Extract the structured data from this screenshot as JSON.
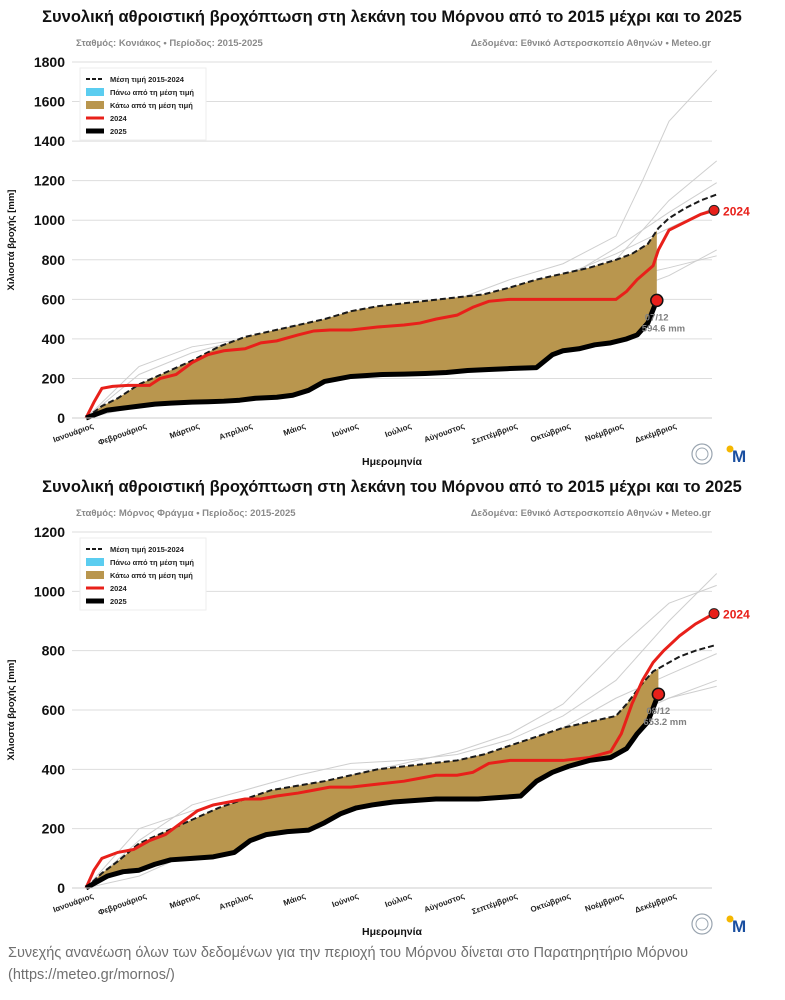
{
  "charts": [
    {
      "title": "Συνολική αθροιστική βροχόπτωση στη λεκάνη του Μόρνου από το 2015 μέχρι και το 2025",
      "station": "Σταθμός: Κονιάκος • Περίοδος: 2015-2025",
      "source": "Δεδομένα: Εθνικό Αστεροσκοπείο Αθηνών • Meteo.gr",
      "ylabel": "Χιλιοστά βροχής [mm]",
      "xlabel": "Ημερομηνία",
      "ylim": [
        0,
        1800
      ],
      "yticks": [
        0,
        200,
        400,
        600,
        800,
        1000,
        1200,
        1400,
        1600,
        1800
      ],
      "months": [
        "Ιανουάριος",
        "Φεβρουάριος",
        "Μάρτιος",
        "Απρίλιος",
        "Μάιος",
        "Ιούνιος",
        "Ιούλιος",
        "Αύγουστος",
        "Σεπτέμβριος",
        "Οκτώβριος",
        "Νοέμβριος",
        "Δεκέμβριος"
      ],
      "legend": [
        "Μέση τιμή 2015-2024",
        "Πάνω από τη μέση τιμή",
        "Κάτω από τη μέση τιμή",
        "2024",
        "2025"
      ],
      "label_2024": "2024",
      "point_date": "07/12",
      "point_value": "594.6 mm",
      "series": {
        "mean": {
          "x": [
            0,
            0.3,
            0.6,
            1,
            1.5,
            2,
            2.5,
            3,
            3.5,
            4,
            4.5,
            5,
            5.5,
            6,
            6.5,
            7,
            7.5,
            8,
            8.5,
            9,
            9.5,
            10,
            10.3,
            10.6,
            10.8,
            11,
            11.3,
            11.6,
            11.9
          ],
          "y": [
            0,
            60,
            100,
            170,
            230,
            290,
            360,
            410,
            440,
            470,
            500,
            540,
            565,
            580,
            595,
            610,
            625,
            660,
            700,
            730,
            760,
            800,
            830,
            880,
            960,
            1010,
            1060,
            1100,
            1130
          ]
        },
        "y2024": {
          "x": [
            0,
            0.15,
            0.3,
            0.5,
            0.8,
            1.2,
            1.4,
            1.7,
            2.0,
            2.3,
            2.6,
            3.0,
            3.3,
            3.6,
            4.0,
            4.3,
            4.6,
            5.0,
            5.5,
            6.0,
            6.3,
            6.6,
            7.0,
            7.3,
            7.6,
            8.0,
            8.5,
            9.0,
            9.5,
            10.0,
            10.2,
            10.4,
            10.7,
            10.8,
            11.0,
            11.3,
            11.6,
            11.85
          ],
          "y": [
            0,
            80,
            150,
            160,
            165,
            165,
            200,
            220,
            280,
            320,
            340,
            350,
            380,
            390,
            420,
            440,
            445,
            445,
            460,
            470,
            480,
            500,
            520,
            560,
            590,
            600,
            600,
            600,
            600,
            600,
            640,
            700,
            770,
            850,
            950,
            990,
            1030,
            1050
          ]
        },
        "y2025": {
          "x": [
            0,
            0.2,
            0.4,
            0.7,
            1.0,
            1.3,
            1.6,
            2.0,
            2.3,
            2.6,
            2.9,
            3.2,
            3.6,
            3.9,
            4.2,
            4.5,
            4.8,
            5.0,
            5.3,
            5.6,
            6.0,
            6.4,
            6.8,
            7.2,
            7.6,
            8.0,
            8.5,
            8.8,
            9.0,
            9.3,
            9.6,
            9.9,
            10.2,
            10.4,
            10.6,
            10.77
          ],
          "y": [
            0,
            20,
            40,
            50,
            60,
            70,
            75,
            80,
            82,
            85,
            90,
            100,
            105,
            115,
            140,
            185,
            200,
            210,
            215,
            220,
            222,
            225,
            230,
            240,
            245,
            250,
            255,
            320,
            340,
            350,
            370,
            380,
            400,
            420,
            480,
            594.6
          ]
        },
        "others": [
          {
            "x": [
              0,
              1,
              2,
              3,
              4,
              5,
              6,
              7,
              8,
              9,
              10,
              11,
              11.9
            ],
            "y": [
              0,
              110,
              200,
              260,
              320,
              400,
              440,
              470,
              530,
              620,
              800,
              1100,
              1300
            ]
          },
          {
            "x": [
              0,
              1,
              2,
              3,
              4,
              5,
              6,
              7,
              8,
              9,
              10,
              10.5,
              11,
              11.9
            ],
            "y": [
              0,
              220,
              330,
              400,
              470,
              520,
              560,
              600,
              700,
              780,
              920,
              1200,
              1500,
              1760
            ]
          },
          {
            "x": [
              0,
              1,
              2,
              3,
              4,
              5,
              6,
              7,
              8,
              9,
              10,
              11,
              11.9
            ],
            "y": [
              0,
              60,
              150,
              230,
              290,
              380,
              430,
              470,
              500,
              560,
              620,
              720,
              850
            ]
          },
          {
            "x": [
              0,
              1,
              2,
              3,
              4,
              5,
              6,
              7,
              8,
              9,
              10,
              11,
              11.9
            ],
            "y": [
              0,
              150,
              260,
              330,
              390,
              420,
              470,
              520,
              600,
              700,
              860,
              1040,
              1190
            ]
          },
          {
            "x": [
              0,
              1,
              2,
              3,
              4,
              5,
              6,
              7,
              8,
              9,
              10,
              11,
              11.9
            ],
            "y": [
              0,
              90,
              230,
              350,
              430,
              520,
              570,
              600,
              640,
              720,
              830,
              960,
              1070
            ]
          },
          {
            "x": [
              0,
              1,
              2,
              3,
              4,
              5,
              6,
              7,
              8,
              9,
              10,
              11,
              11.9
            ],
            "y": [
              0,
              260,
              360,
              400,
              440,
              460,
              490,
              520,
              560,
              620,
              700,
              760,
              820
            ]
          }
        ]
      }
    },
    {
      "title": "Συνολική αθροιστική βροχόπτωση στη λεκάνη του Μόρνου από το 2015 μέχρι και το 2025",
      "station": "Σταθμός: Μόρνος Φράγμα • Περίοδος: 2015-2025",
      "source": "Δεδομένα: Εθνικό Αστεροσκοπείο Αθηνών • Meteo.gr",
      "ylabel": "Χιλιοστά βροχής [mm]",
      "xlabel": "Ημερομηνία",
      "ylim": [
        0,
        1200
      ],
      "yticks": [
        0,
        200,
        400,
        600,
        800,
        1000,
        1200
      ],
      "months": [
        "Ιανουάριος",
        "Φεβρουάριος",
        "Μάρτιος",
        "Απρίλιος",
        "Μάιος",
        "Ιούνιος",
        "Ιούλιος",
        "Αύγουστος",
        "Σεπτέμβριος",
        "Οκτώβριος",
        "Νοέμβριος",
        "Δεκέμβριος"
      ],
      "legend": [
        "Μέση τιμή 2015-2024",
        "Πάνω από τη μέση τιμή",
        "Κάτω από τη μέση τιμή",
        "2024",
        "2025"
      ],
      "label_2024": "2024",
      "point_date": "08/12",
      "point_value": "653.2 mm",
      "series": {
        "mean": {
          "x": [
            0,
            0.3,
            0.6,
            1,
            1.5,
            2,
            2.5,
            3,
            3.5,
            4,
            4.5,
            5,
            5.5,
            6,
            6.5,
            7,
            7.5,
            8,
            8.5,
            9,
            9.5,
            10,
            10.2,
            10.5,
            10.7,
            10.9,
            11.2,
            11.5,
            11.9
          ],
          "y": [
            0,
            50,
            90,
            150,
            190,
            230,
            270,
            300,
            330,
            345,
            360,
            380,
            400,
            410,
            420,
            430,
            450,
            480,
            510,
            540,
            560,
            580,
            620,
            690,
            730,
            750,
            780,
            800,
            820
          ]
        },
        "y2024": {
          "x": [
            0,
            0.15,
            0.3,
            0.6,
            0.9,
            1.2,
            1.5,
            1.8,
            2.1,
            2.4,
            2.7,
            3.0,
            3.3,
            3.6,
            4.0,
            4.3,
            4.6,
            5.0,
            5.5,
            6.0,
            6.3,
            6.6,
            7.0,
            7.3,
            7.6,
            8.0,
            8.5,
            9.0,
            9.5,
            9.9,
            10.1,
            10.3,
            10.5,
            10.7,
            10.9,
            11.2,
            11.5,
            11.85
          ],
          "y": [
            0,
            60,
            100,
            120,
            130,
            160,
            180,
            220,
            260,
            280,
            290,
            300,
            300,
            310,
            320,
            330,
            340,
            340,
            350,
            360,
            370,
            380,
            380,
            390,
            420,
            430,
            430,
            430,
            440,
            460,
            520,
            620,
            700,
            760,
            800,
            850,
            890,
            925
          ]
        },
        "y2025": {
          "x": [
            0,
            0.2,
            0.4,
            0.7,
            1.0,
            1.3,
            1.6,
            2.0,
            2.4,
            2.8,
            3.1,
            3.4,
            3.8,
            4.2,
            4.5,
            4.8,
            5.1,
            5.4,
            5.8,
            6.2,
            6.6,
            7.0,
            7.4,
            7.8,
            8.2,
            8.5,
            8.8,
            9.1,
            9.5,
            9.9,
            10.2,
            10.4,
            10.6,
            10.8
          ],
          "y": [
            0,
            20,
            40,
            55,
            60,
            80,
            95,
            100,
            105,
            120,
            160,
            180,
            190,
            195,
            220,
            250,
            270,
            280,
            290,
            295,
            300,
            300,
            300,
            305,
            310,
            360,
            390,
            410,
            430,
            440,
            470,
            520,
            560,
            653.2
          ]
        },
        "others": [
          {
            "x": [
              0,
              1,
              2,
              3,
              4,
              5,
              6,
              7,
              8,
              9,
              10,
              11,
              11.9
            ],
            "y": [
              0,
              160,
              280,
              330,
              380,
              420,
              430,
              450,
              500,
              580,
              700,
              900,
              1060
            ]
          },
          {
            "x": [
              0,
              1,
              2,
              3,
              4,
              5,
              6,
              7,
              8,
              9,
              10,
              11,
              11.9
            ],
            "y": [
              0,
              80,
              180,
              250,
              320,
              380,
              420,
              460,
              520,
              620,
              800,
              960,
              1020
            ]
          },
          {
            "x": [
              0,
              1,
              2,
              3,
              4,
              5,
              6,
              7,
              8,
              9,
              10,
              11,
              11.9
            ],
            "y": [
              0,
              40,
              120,
              200,
              270,
              330,
              360,
              390,
              430,
              480,
              560,
              640,
              700
            ]
          },
          {
            "x": [
              0,
              1,
              2,
              3,
              4,
              5,
              6,
              7,
              8,
              9,
              10,
              11,
              11.9
            ],
            "y": [
              0,
              120,
              220,
              290,
              330,
              370,
              400,
              430,
              470,
              540,
              640,
              720,
              790
            ]
          },
          {
            "x": [
              0,
              1,
              2,
              3,
              4,
              5,
              6,
              7,
              8,
              9,
              10,
              11,
              11.9
            ],
            "y": [
              0,
              200,
              260,
              300,
              330,
              370,
              390,
              410,
              440,
              480,
              560,
              640,
              680
            ]
          }
        ]
      }
    }
  ],
  "caption": "Συνεχής ανανέωση όλων των δεδομένων για την περιοχή του Μόρνου δίνεται στο Παρατηρητήριο Μόρνου (https://meteo.gr/mornos/)",
  "logo_text": "M",
  "colors": {
    "mean": "#1a1a1a",
    "above": "#5bcdf0",
    "below": "#b9964e",
    "y2024": "#e8201a",
    "y2025": "#000000",
    "others": "#cfcfcf",
    "grid": "#dddddd",
    "label2024": "#e8201a",
    "annot": "#808080"
  }
}
